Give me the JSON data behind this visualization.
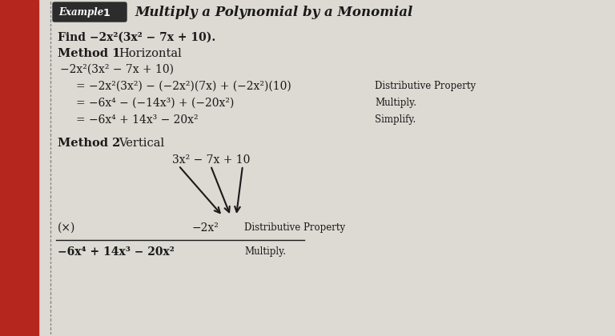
{
  "page_bg": "#ddd9d3",
  "content_bg": "#e8e5e0",
  "left_bar_color": "#b5261e",
  "title_box_color": "#2c2c2c",
  "title_text": "Multiply a Polynomial by a Monomial",
  "find_line": "Find −2x²(3x² − 7x + 10).",
  "line1": "−2x²(3x² − 7x + 10)",
  "line2_left": "= −2x²(3x²) − (−2x²)(7x) + (−2x²)(10)",
  "line2_right": "Distributive Property",
  "line3_left": "= −6x⁴ − (−14x³) + (−20x²)",
  "line3_right": "Multiply.",
  "line4_left": "= −6x⁴ + 14x³ − 20x²",
  "line4_right": "Simplify.",
  "v_line1": "3x² − 7x + 10",
  "v_line2_left": "(×)",
  "v_line2_mid": "−2x²",
  "v_line2_right": "Distributive Property",
  "v_line3": "−6x⁴ + 14x³ − 20x²",
  "v_line3_right": "Multiply.",
  "text_color": "#1a1a1a",
  "arrow_color": "#1a1a1a",
  "dot_color": "#888888"
}
